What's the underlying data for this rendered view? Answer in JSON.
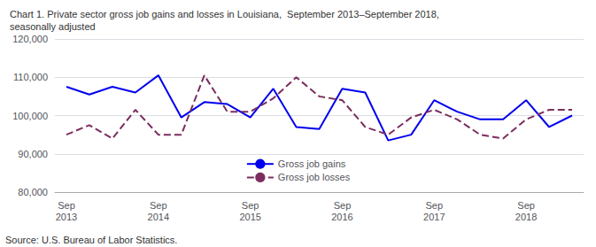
{
  "chart_data": {
    "type": "line",
    "title": "Chart 1. Private sector gross job gains and losses in Louisiana,  September 2013–September 2018,\nseasonally adjusted",
    "annotations": [
      "Source: U.S. Bureau of Labor Statistics."
    ],
    "categories": [
      "Sep\n2013",
      null,
      null,
      null,
      "Sep\n2014",
      null,
      null,
      null,
      "Sep\n2015",
      null,
      null,
      null,
      "Sep\n2016",
      null,
      null,
      null,
      "Sep\n2017",
      null,
      null,
      null,
      "Sep\n2018",
      null,
      null
    ],
    "series": [
      {
        "name": "Gross job gains",
        "color": "#0000EE",
        "line_style": "solid",
        "values": [
          107500,
          105500,
          107500,
          106000,
          110500,
          99500,
          103500,
          103000,
          99500,
          107000,
          97000,
          96500,
          107000,
          106000,
          93500,
          95000,
          104000,
          101000,
          99000,
          99000,
          104000,
          97000,
          100000
        ]
      },
      {
        "name": "Gross job losses",
        "color": "#7B2D5E",
        "line_style": "dashed",
        "values": [
          95000,
          97500,
          94000,
          101500,
          95000,
          95000,
          110500,
          101000,
          101000,
          104500,
          110000,
          105000,
          104000,
          97000,
          95000,
          99500,
          101500,
          99000,
          95000,
          94000,
          99000,
          101500,
          101500
        ]
      }
    ],
    "ylim": [
      80000,
      120000
    ],
    "yticks": [
      {
        "value": 80000,
        "label": "80,000"
      },
      {
        "value": 90000,
        "label": "90,000"
      },
      {
        "value": 100000,
        "label": "100,000"
      },
      {
        "value": 110000,
        "label": "110,000"
      },
      {
        "value": 120000,
        "label": "120,000"
      }
    ],
    "grid": true,
    "legend": "lower center"
  }
}
